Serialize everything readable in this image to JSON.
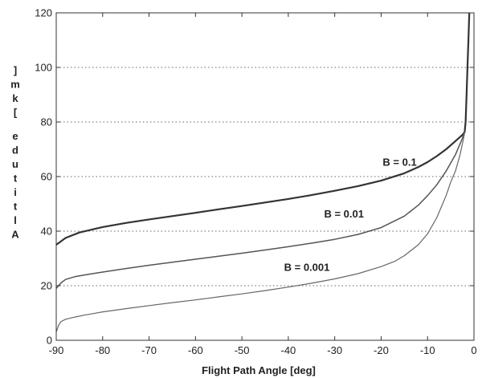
{
  "chart_data": {
    "type": "line",
    "xlabel": "Flight Path Angle [deg]",
    "ylabel": "]mk[ edutitlA",
    "xlim": [
      -90,
      0
    ],
    "ylim": [
      0,
      120
    ],
    "xticks": [
      -90,
      -80,
      -70,
      -60,
      -50,
      -40,
      -30,
      -20,
      -10,
      0
    ],
    "yticks": [
      0,
      20,
      40,
      60,
      80,
      100,
      120
    ],
    "grid": "horizontal dotted",
    "legend": "inline labels",
    "series": [
      {
        "name": "B = 0.1",
        "x": [
          -90,
          -88,
          -85,
          -80,
          -75,
          -70,
          -65,
          -60,
          -55,
          -50,
          -45,
          -40,
          -35,
          -30,
          -25,
          -20,
          -15,
          -12,
          -10,
          -8,
          -6,
          -5,
          -4,
          -3,
          -2.5,
          -2,
          -1.8,
          -1.6,
          -1.4,
          -1.2,
          -1
        ],
        "y": [
          35,
          37.5,
          39.5,
          41.5,
          43,
          44.3,
          45.5,
          46.7,
          48,
          49.2,
          50.5,
          51.8,
          53.2,
          54.8,
          56.5,
          58.5,
          61.2,
          63.5,
          65.3,
          67.5,
          70,
          71.5,
          73,
          74.5,
          75.3,
          76.3,
          80,
          90,
          100,
          110,
          120
        ]
      },
      {
        "name": "B = 0.01",
        "x": [
          -90,
          -89,
          -88,
          -86,
          -83,
          -80,
          -75,
          -70,
          -65,
          -60,
          -55,
          -50,
          -45,
          -40,
          -35,
          -30,
          -25,
          -20,
          -15,
          -12,
          -10,
          -8,
          -6,
          -5,
          -4,
          -3,
          -2.5,
          -2
        ],
        "y": [
          19,
          21,
          22.3,
          23.3,
          24.2,
          25,
          26.3,
          27.5,
          28.6,
          29.7,
          30.8,
          31.9,
          33.1,
          34.3,
          35.6,
          37,
          38.8,
          41.3,
          45.5,
          49.5,
          53,
          57,
          62,
          65,
          68,
          72,
          74,
          76.5
        ]
      },
      {
        "name": "B = 0.001",
        "x": [
          -90,
          -89.5,
          -89,
          -88,
          -86,
          -84,
          -82,
          -80,
          -75,
          -70,
          -65,
          -60,
          -55,
          -50,
          -45,
          -40,
          -35,
          -30,
          -25,
          -20,
          -17,
          -15,
          -12,
          -10,
          -8,
          -6,
          -5,
          -4,
          -3,
          -2.5,
          -2
        ],
        "y": [
          3,
          5.5,
          6.8,
          7.7,
          8.5,
          9.2,
          9.8,
          10.4,
          11.6,
          12.7,
          13.8,
          14.8,
          15.9,
          17,
          18.2,
          19.5,
          20.9,
          22.5,
          24.4,
          27,
          29,
          31,
          35,
          39,
          45,
          53,
          58,
          62,
          68,
          72,
          76
        ]
      }
    ],
    "annotations": [
      {
        "text": "B = 0.1",
        "x": -16,
        "y": 64
      },
      {
        "text": "B = 0.01",
        "x": -28,
        "y": 45
      },
      {
        "text": "B = 0.001",
        "x": -36,
        "y": 25.5
      }
    ]
  }
}
